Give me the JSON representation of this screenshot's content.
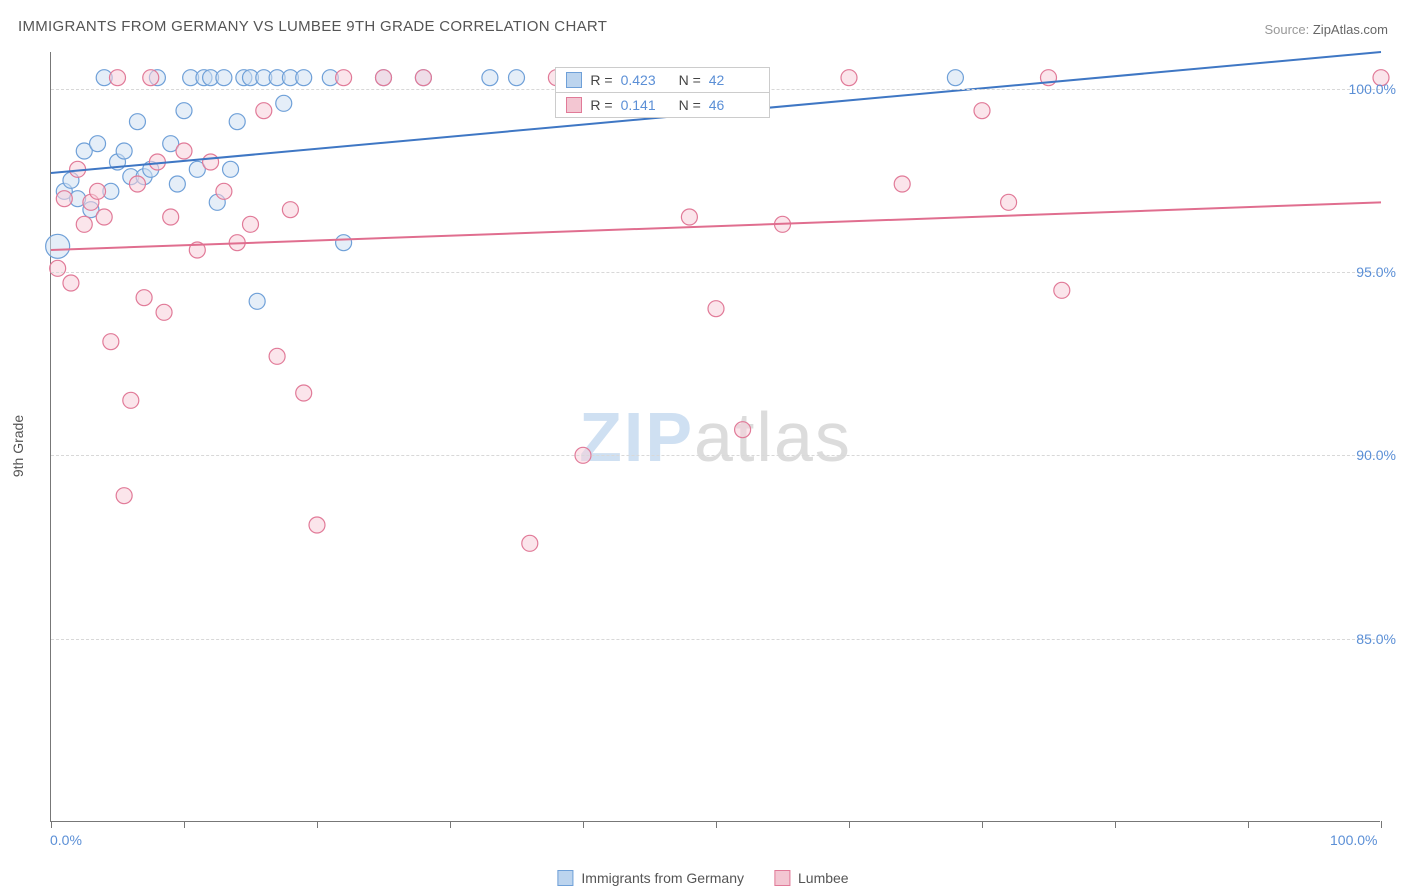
{
  "title": "IMMIGRANTS FROM GERMANY VS LUMBEE 9TH GRADE CORRELATION CHART",
  "source_label": "Source: ",
  "source_value": "ZipAtlas.com",
  "yaxis_label": "9th Grade",
  "watermark_a": "ZIP",
  "watermark_b": "atlas",
  "chart": {
    "type": "scatter",
    "xlim": [
      0,
      100
    ],
    "ylim": [
      80,
      101
    ],
    "yticks": [
      85.0,
      90.0,
      95.0,
      100.0
    ],
    "ytick_labels": [
      "85.0%",
      "90.0%",
      "95.0%",
      "100.0%"
    ],
    "xticks": [
      0,
      10,
      20,
      30,
      40,
      50,
      60,
      70,
      80,
      90,
      100
    ],
    "xtick_labels_shown": {
      "0": "0.0%",
      "100": "100.0%"
    },
    "background_color": "#ffffff",
    "grid_color": "#d8d8d8",
    "axis_color": "#777777",
    "marker_radius": 8,
    "marker_stroke_width": 1.2,
    "line_width": 2,
    "series": [
      {
        "name": "Immigrants from Germany",
        "fill": "#cfe0f2",
        "stroke": "#6fa0d8",
        "fill_opacity": 0.55,
        "legend_swatch_fill": "#bcd4ee",
        "legend_swatch_stroke": "#6fa0d8",
        "R": "0.423",
        "N": "42",
        "trend": {
          "x1": 0,
          "y1": 97.7,
          "x2": 100,
          "y2": 101.0,
          "color": "#3f77c4"
        },
        "points": [
          [
            0.5,
            95.7,
            12
          ],
          [
            1,
            97.2
          ],
          [
            1.5,
            97.5
          ],
          [
            2,
            97.0
          ],
          [
            2.5,
            98.3
          ],
          [
            3,
            96.7
          ],
          [
            3.5,
            98.5
          ],
          [
            4,
            100.3
          ],
          [
            4.5,
            97.2
          ],
          [
            5,
            98.0
          ],
          [
            5.5,
            98.3
          ],
          [
            6,
            97.6
          ],
          [
            6.5,
            99.1
          ],
          [
            7,
            97.6
          ],
          [
            7.5,
            97.8
          ],
          [
            8,
            100.3
          ],
          [
            9,
            98.5
          ],
          [
            9.5,
            97.4
          ],
          [
            10,
            99.4
          ],
          [
            10.5,
            100.3
          ],
          [
            11,
            97.8
          ],
          [
            11.5,
            100.3
          ],
          [
            12,
            100.3
          ],
          [
            12.5,
            96.9
          ],
          [
            13,
            100.3
          ],
          [
            13.5,
            97.8
          ],
          [
            14,
            99.1
          ],
          [
            14.5,
            100.3
          ],
          [
            15,
            100.3
          ],
          [
            15.5,
            94.2
          ],
          [
            16,
            100.3
          ],
          [
            17,
            100.3
          ],
          [
            17.5,
            99.6
          ],
          [
            18,
            100.3
          ],
          [
            19,
            100.3
          ],
          [
            21,
            100.3
          ],
          [
            22,
            95.8
          ],
          [
            25,
            100.3
          ],
          [
            28,
            100.3
          ],
          [
            33,
            100.3
          ],
          [
            35,
            100.3
          ],
          [
            68,
            100.3
          ]
        ]
      },
      {
        "name": "Lumbee",
        "fill": "#f7d0da",
        "stroke": "#e17a98",
        "fill_opacity": 0.55,
        "legend_swatch_fill": "#f3c6d2",
        "legend_swatch_stroke": "#e17a98",
        "R": "0.141",
        "N": "46",
        "trend": {
          "x1": 0,
          "y1": 95.6,
          "x2": 100,
          "y2": 96.9,
          "color": "#e06e8f"
        },
        "points": [
          [
            0.5,
            95.1
          ],
          [
            1,
            97.0
          ],
          [
            1.5,
            94.7
          ],
          [
            2,
            97.8
          ],
          [
            2.5,
            96.3
          ],
          [
            3,
            96.9
          ],
          [
            3.5,
            97.2
          ],
          [
            4,
            96.5
          ],
          [
            4.5,
            93.1
          ],
          [
            5,
            100.3
          ],
          [
            5.5,
            88.9
          ],
          [
            6,
            91.5
          ],
          [
            6.5,
            97.4
          ],
          [
            7,
            94.3
          ],
          [
            7.5,
            100.3
          ],
          [
            8,
            98.0
          ],
          [
            8.5,
            93.9
          ],
          [
            9,
            96.5
          ],
          [
            10,
            98.3
          ],
          [
            11,
            95.6
          ],
          [
            12,
            98.0
          ],
          [
            13,
            97.2
          ],
          [
            14,
            95.8
          ],
          [
            15,
            96.3
          ],
          [
            16,
            99.4
          ],
          [
            17,
            92.7
          ],
          [
            18,
            96.7
          ],
          [
            19,
            91.7
          ],
          [
            20,
            88.1
          ],
          [
            22,
            100.3
          ],
          [
            25,
            100.3
          ],
          [
            28,
            100.3
          ],
          [
            36,
            87.6
          ],
          [
            38,
            100.3
          ],
          [
            40,
            90.0
          ],
          [
            48,
            96.5
          ],
          [
            50,
            94.0
          ],
          [
            52,
            90.7
          ],
          [
            55,
            96.3
          ],
          [
            60,
            100.3
          ],
          [
            64,
            97.4
          ],
          [
            70,
            99.4
          ],
          [
            72,
            96.9
          ],
          [
            75,
            100.3
          ],
          [
            76,
            94.5
          ],
          [
            100,
            100.3
          ]
        ]
      }
    ]
  },
  "legend_top": {
    "label_R": "R =",
    "label_N": "N ="
  },
  "legend_bottom": {
    "items": [
      "Immigrants from Germany",
      "Lumbee"
    ]
  }
}
